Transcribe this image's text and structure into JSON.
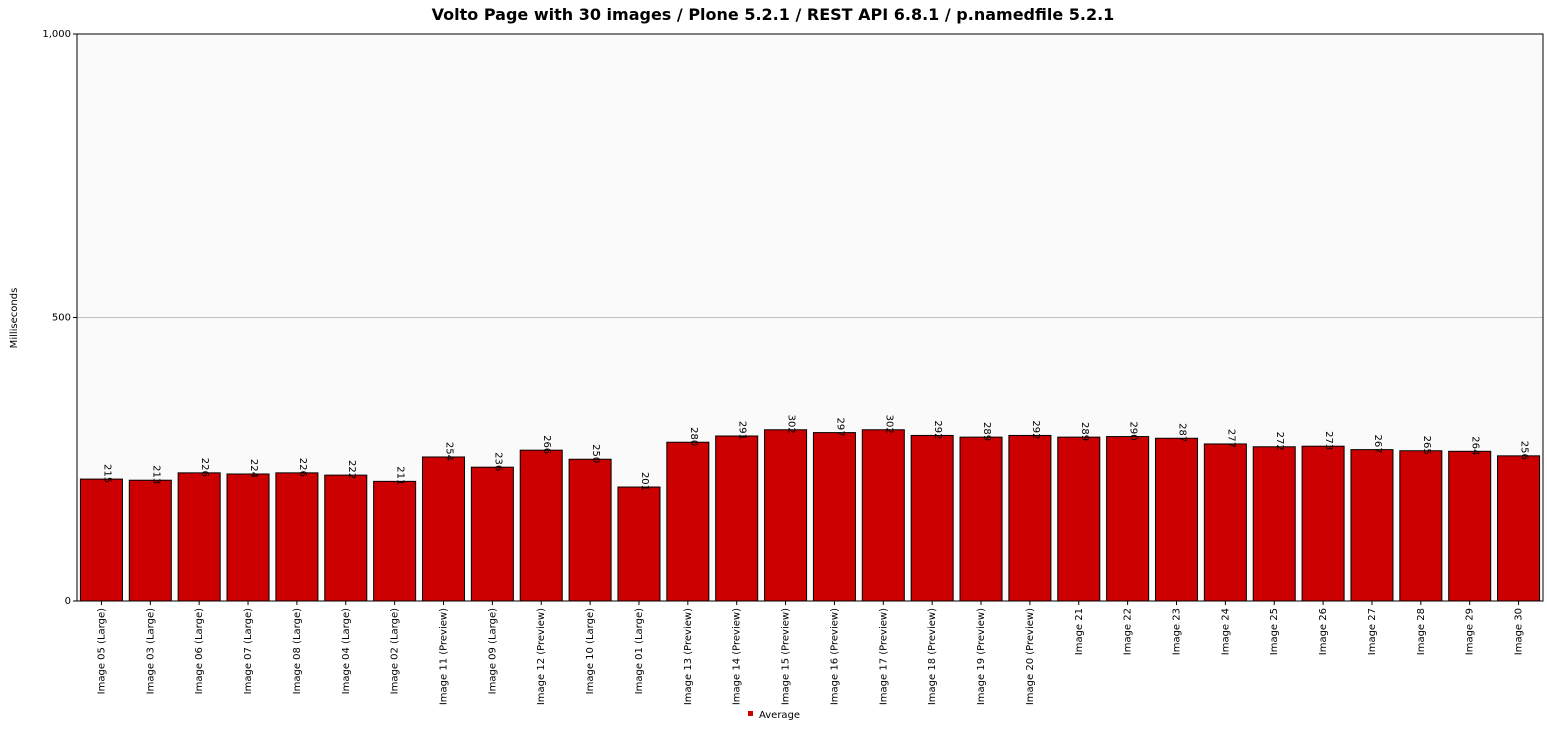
{
  "chart_data": {
    "type": "bar",
    "title": "Volto Page with 30 images / Plone 5.2.1 / REST API 6.8.1 / p.namedfile 5.2.1",
    "xlabel": "",
    "ylabel": "Milliseconds",
    "ylim": [
      0,
      1000
    ],
    "yticks": [
      0,
      500,
      1000
    ],
    "ytick_labels": [
      "0",
      "500",
      "1,000"
    ],
    "grid": true,
    "legend_position": "bottom-center",
    "categories": [
      "Image 05 (Large)",
      "Image 03 (Large)",
      "Image 06 (Large)",
      "Image 07 (Large)",
      "Image 08 (Large)",
      "Image 04 (Large)",
      "Image 02 (Large)",
      "Image 11 (Preview)",
      "Image 09 (Large)",
      "Image 12 (Preview)",
      "Image 10 (Large)",
      "Image 01 (Large)",
      "Image 13 (Preview)",
      "Image 14 (Preview)",
      "Image 15 (Preview)",
      "Image 16 (Preview)",
      "Image 17 (Preview)",
      "Image 18 (Preview)",
      "Image 19 (Preview)",
      "Image 20 (Preview)",
      "Image 21",
      "Image 22",
      "Image 23",
      "Image 24",
      "Image 25",
      "Image 26",
      "Image 27",
      "Image 28",
      "Image 29",
      "Image 30"
    ],
    "series": [
      {
        "name": "Average",
        "color": "#cc0000",
        "values": [
          215,
          213,
          226,
          224,
          226,
          222,
          211,
          254,
          236,
          266,
          250,
          201,
          280,
          291,
          302,
          297,
          302,
          292,
          289,
          292,
          289,
          290,
          287,
          277,
          272,
          273,
          267,
          265,
          264,
          256
        ]
      }
    ]
  }
}
